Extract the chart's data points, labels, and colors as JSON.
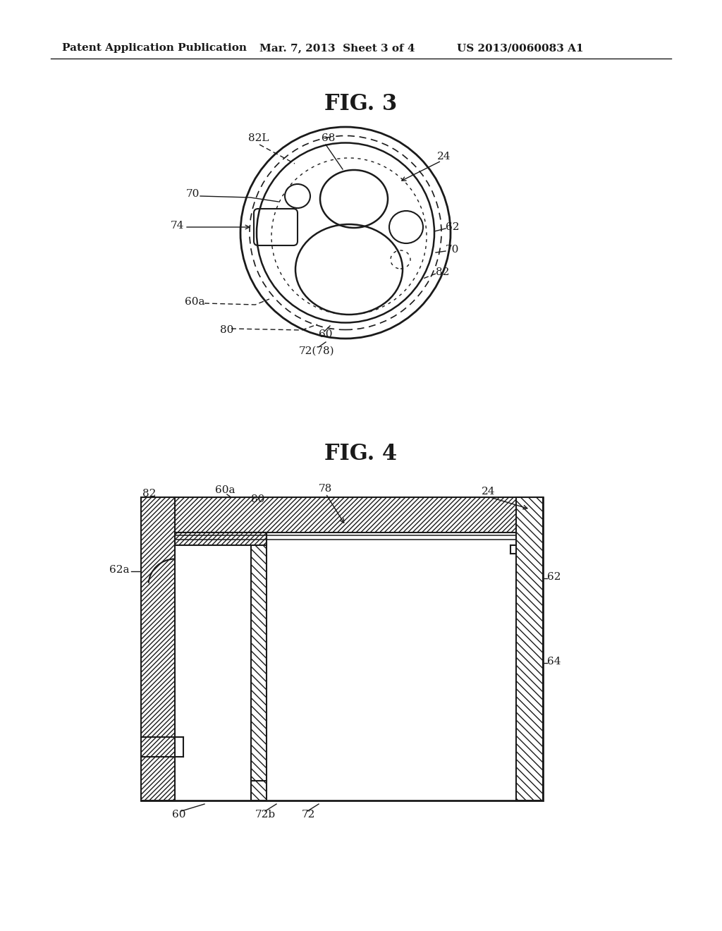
{
  "header_left": "Patent Application Publication",
  "header_mid": "Mar. 7, 2013  Sheet 3 of 4",
  "header_right": "US 2013/0060083 A1",
  "fig3_title": "FIG. 3",
  "fig4_title": "FIG. 4",
  "bg_color": "#ffffff",
  "line_color": "#1a1a1a"
}
